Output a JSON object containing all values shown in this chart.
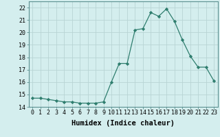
{
  "x": [
    0,
    1,
    2,
    3,
    4,
    5,
    6,
    7,
    8,
    9,
    10,
    11,
    12,
    13,
    14,
    15,
    16,
    17,
    18,
    19,
    20,
    21,
    22,
    23
  ],
  "y": [
    14.7,
    14.7,
    14.6,
    14.5,
    14.4,
    14.4,
    14.3,
    14.3,
    14.3,
    14.4,
    16.0,
    17.5,
    17.5,
    20.2,
    20.3,
    21.6,
    21.3,
    21.9,
    20.9,
    19.4,
    18.1,
    17.2,
    17.2,
    16.1
  ],
  "line_color": "#2e7d6e",
  "marker": "D",
  "marker_size": 2.2,
  "background_color": "#d4eeee",
  "grid_color": "#b8d4d4",
  "xlabel": "Humidex (Indice chaleur)",
  "ylim": [
    14,
    22.5
  ],
  "yticks": [
    14,
    15,
    16,
    17,
    18,
    19,
    20,
    21,
    22
  ],
  "xlim": [
    -0.5,
    23.5
  ],
  "xticks": [
    0,
    1,
    2,
    3,
    4,
    5,
    6,
    7,
    8,
    9,
    10,
    11,
    12,
    13,
    14,
    15,
    16,
    17,
    18,
    19,
    20,
    21,
    22,
    23
  ],
  "xtick_labels": [
    "0",
    "1",
    "2",
    "3",
    "4",
    "5",
    "6",
    "7",
    "8",
    "9",
    "10",
    "11",
    "12",
    "13",
    "14",
    "15",
    "16",
    "17",
    "18",
    "19",
    "20",
    "21",
    "22",
    "23"
  ],
  "label_fontsize": 7.5,
  "tick_fontsize": 6.0
}
